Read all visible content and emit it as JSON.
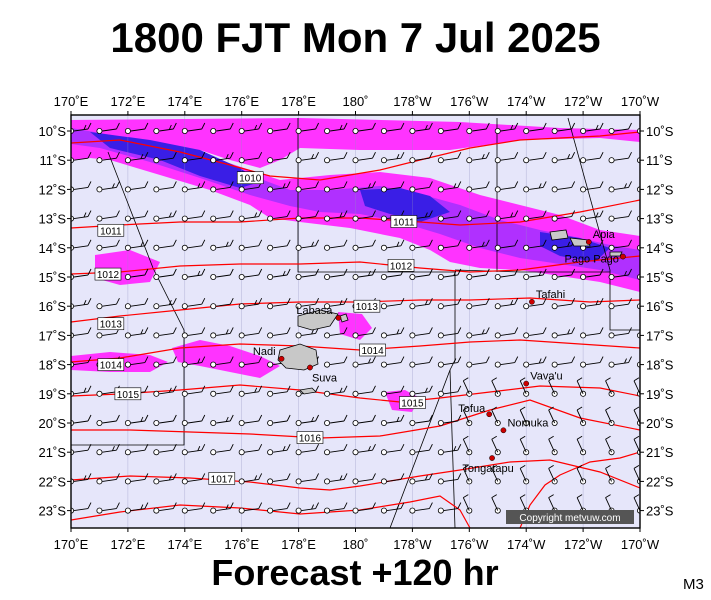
{
  "header": {
    "title": "1800 FJT Mon 7 Jul 2025"
  },
  "footer": {
    "forecast": "Forecast +120 hr",
    "model": "M3"
  },
  "copyright": "Copyright metvuw.com",
  "colors": {
    "background": "#e6e6fa",
    "precip_light": "#ff33ff",
    "precip_mid": "#b030ff",
    "precip_heavy": "#3a1ee6",
    "isobar": "#ff0000",
    "land": "#c8c8c8",
    "city": "#cc0000"
  },
  "axes": {
    "lon_labels_top": [
      "170˚E",
      "172˚E",
      "174˚E",
      "176˚E",
      "178˚E",
      "180˚",
      "178˚W",
      "176˚W",
      "174˚W",
      "172˚W",
      "170˚W"
    ],
    "lon_labels_bottom": [
      "170˚E",
      "172˚E",
      "174˚E",
      "176˚E",
      "178˚E",
      "180˚",
      "178˚W",
      "176˚W",
      "174˚W",
      "172˚W",
      "170˚W"
    ],
    "lat_labels_left": [
      "10˚S",
      "11˚S",
      "12˚S",
      "13˚S",
      "14˚S",
      "15˚S",
      "16˚S",
      "17˚S",
      "18˚S",
      "19˚S",
      "20˚S",
      "21˚S",
      "22˚S",
      "23˚S"
    ],
    "lat_labels_right": [
      "10˚S",
      "11˚S",
      "12˚S",
      "13˚S",
      "14˚S",
      "15˚S",
      "16˚S",
      "17˚S",
      "18˚S",
      "19˚S",
      "20˚S",
      "21˚S",
      "22˚S",
      "23˚S"
    ],
    "lon_range": [
      170,
      190
    ],
    "lat_range": [
      -23.5,
      -9.5
    ]
  },
  "isobars": [
    {
      "label": "1010",
      "lon": 176.3,
      "lat": -11.6
    },
    {
      "label": "1011",
      "lon": 171.4,
      "lat": -13.4
    },
    {
      "label": "1011",
      "lon": 181.7,
      "lat": -13.1
    },
    {
      "label": "1012",
      "lon": 171.3,
      "lat": -14.9
    },
    {
      "label": "1012",
      "lon": 181.6,
      "lat": -14.6
    },
    {
      "label": "1013",
      "lon": 171.4,
      "lat": -16.6
    },
    {
      "label": "1013",
      "lon": 180.4,
      "lat": -16.0
    },
    {
      "label": "1014",
      "lon": 171.4,
      "lat": -18.0
    },
    {
      "label": "1014",
      "lon": 180.6,
      "lat": -17.5
    },
    {
      "label": "1015",
      "lon": 172.0,
      "lat": -19.0
    },
    {
      "label": "1015",
      "lon": 182.0,
      "lat": -19.3
    },
    {
      "label": "1016",
      "lon": 178.4,
      "lat": -20.5
    },
    {
      "label": "1017",
      "lon": 175.3,
      "lat": -21.9
    }
  ],
  "places": [
    {
      "name": "Apia",
      "lon": 188.2,
      "lat": -13.8
    },
    {
      "name": "Pago Pago",
      "lon": 189.4,
      "lat": -14.3
    },
    {
      "name": "Tafahi",
      "lon": 186.2,
      "lat": -15.85
    },
    {
      "name": "Labasa",
      "lon": 179.4,
      "lat": -16.4
    },
    {
      "name": "Nadi",
      "lon": 177.4,
      "lat": -17.8
    },
    {
      "name": "Suva",
      "lon": 178.4,
      "lat": -18.1
    },
    {
      "name": "Vava'u",
      "lon": 186.0,
      "lat": -18.65
    },
    {
      "name": "Tofua",
      "lon": 184.7,
      "lat": -19.7
    },
    {
      "name": "Nomuka",
      "lon": 185.2,
      "lat": -20.25
    },
    {
      "name": "Tongatapu",
      "lon": 184.8,
      "lat": -21.2
    }
  ]
}
